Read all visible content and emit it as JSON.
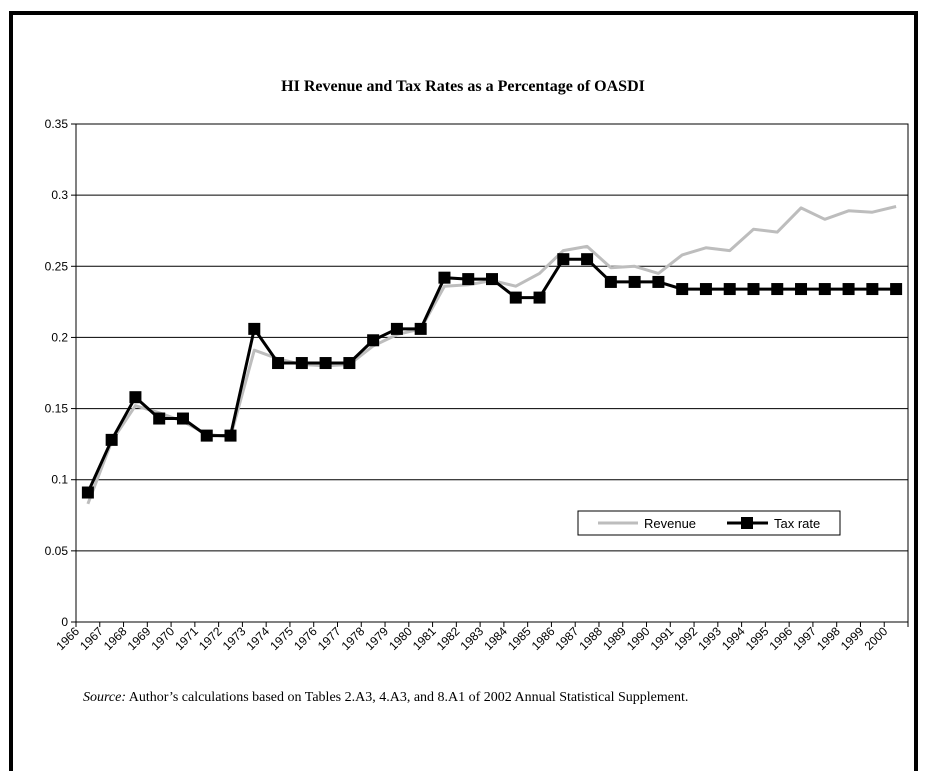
{
  "chart_data": {
    "type": "line",
    "title": "HI Revenue and Tax Rates as a Percentage of OASDI",
    "xlabel": "",
    "ylabel": "",
    "ylim": [
      0,
      0.35
    ],
    "yticks": [
      "0",
      "0.05",
      "0.1",
      "0.15",
      "0.2",
      "0.25",
      "0.3",
      "0.35"
    ],
    "grid": true,
    "legend_position": "lower-right",
    "categories": [
      "1966",
      "1967",
      "1968",
      "1969",
      "1970",
      "1971",
      "1972",
      "1973",
      "1974",
      "1975",
      "1976",
      "1977",
      "1978",
      "1979",
      "1980",
      "1981",
      "1982",
      "1983",
      "1984",
      "1985",
      "1986",
      "1987",
      "1988",
      "1989",
      "1990",
      "1991",
      "1992",
      "1993",
      "1994",
      "1995",
      "1996",
      "1997",
      "1998",
      "1999",
      "2000"
    ],
    "series": [
      {
        "name": "Revenue",
        "color": "#bdbdbd",
        "values": [
          0.083,
          0.127,
          0.152,
          0.147,
          0.141,
          0.132,
          0.13,
          0.191,
          0.185,
          0.181,
          0.18,
          0.181,
          0.194,
          0.202,
          0.206,
          0.236,
          0.237,
          0.24,
          0.236,
          0.245,
          0.261,
          0.264,
          0.249,
          0.25,
          0.245,
          0.258,
          0.263,
          0.261,
          0.276,
          0.274,
          0.291,
          0.283,
          0.289,
          0.288,
          0.292
        ]
      },
      {
        "name": "Tax rate",
        "color": "#000000",
        "values": [
          0.091,
          0.128,
          0.158,
          0.143,
          0.143,
          0.131,
          0.131,
          0.206,
          0.182,
          0.182,
          0.182,
          0.182,
          0.198,
          0.206,
          0.206,
          0.242,
          0.241,
          0.241,
          0.228,
          0.228,
          0.255,
          0.255,
          0.239,
          0.239,
          0.239,
          0.234,
          0.234,
          0.234,
          0.234,
          0.234,
          0.234,
          0.234,
          0.234,
          0.234,
          0.234
        ]
      }
    ]
  },
  "source": {
    "label": "Source:",
    "text": " Author’s calculations based on Tables 2.A3, 4.A3, and 8.A1 of 2002 Annual Statistical Supplement."
  }
}
